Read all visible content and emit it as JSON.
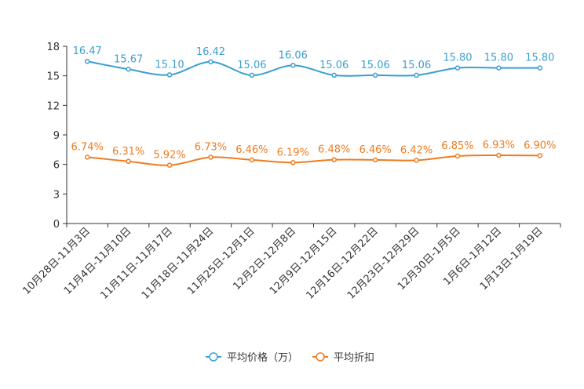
{
  "chart_data": {
    "type": "line",
    "categories": [
      "10月28日-11月3日",
      "11月4日-11月10日",
      "11月11日-11月17日",
      "11月18日-11月24日",
      "11月25日-12月1日",
      "12月2日-12月8日",
      "12月9日-12月15日",
      "12月16日-12月22日",
      "12月23日-12月29日",
      "12月30日-1月5日",
      "1月6日-1月12日",
      "1月13日-1月19日"
    ],
    "ylim": [
      0,
      18
    ],
    "yticks": [
      0,
      3,
      6,
      9,
      12,
      15,
      18
    ],
    "grid": false,
    "legend_position": "bottom-center",
    "series": [
      {
        "name": "平均价格（万）",
        "color": "#3a9fd0",
        "values": [
          16.47,
          15.67,
          15.1,
          16.42,
          15.06,
          16.06,
          15.06,
          15.06,
          15.06,
          15.8,
          15.8,
          15.8
        ],
        "labels": [
          "16.47",
          "15.67",
          "15.10",
          "16.42",
          "15.06",
          "16.06",
          "15.06",
          "15.06",
          "15.06",
          "15.80",
          "15.80",
          "15.80"
        ]
      },
      {
        "name": "平均折扣",
        "color": "#f07b1e",
        "values": [
          6.74,
          6.31,
          5.92,
          6.73,
          6.46,
          6.19,
          6.48,
          6.46,
          6.42,
          6.85,
          6.93,
          6.9
        ],
        "labels": [
          "6.74%",
          "6.31%",
          "5.92%",
          "6.73%",
          "6.46%",
          "6.19%",
          "6.48%",
          "6.46%",
          "6.42%",
          "6.85%",
          "6.93%",
          "6.90%"
        ]
      }
    ]
  }
}
